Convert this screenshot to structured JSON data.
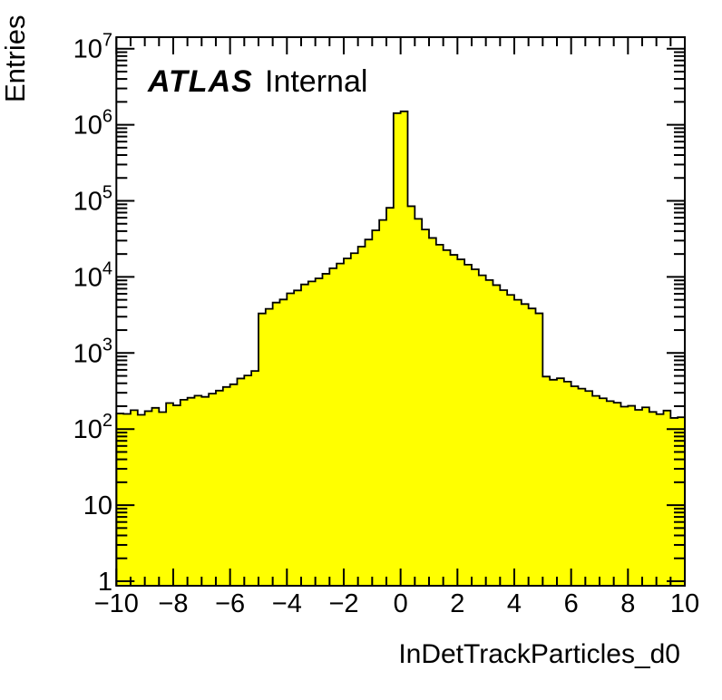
{
  "chart_data": {
    "type": "bar",
    "subtype": "histogram-step-filled",
    "title": "",
    "xlabel": "InDetTrackParticles_d0",
    "ylabel": "Entries",
    "annotations": {
      "experiment": "ATLAS",
      "status": "Internal"
    },
    "x_range": [
      -10,
      10
    ],
    "bin_width": 0.25,
    "n_bins": 80,
    "y_scale": "log",
    "y_range": [
      0.87,
      14200000
    ],
    "x_tick_major_values": [
      -10,
      -8,
      -6,
      -4,
      -2,
      0,
      2,
      4,
      6,
      8,
      10
    ],
    "x_tick_labels": [
      "−10",
      "−8",
      "−6",
      "−4",
      "−2",
      "0",
      "2",
      "4",
      "6",
      "8",
      "10"
    ],
    "x_tick_minor_step": 0.5,
    "y_tick_decades": [
      0,
      1,
      2,
      3,
      4,
      5,
      6,
      7
    ],
    "legend": null,
    "grid": false,
    "fill_color": "#ffff00",
    "line_color": "#000000",
    "background_color": "#ffffff",
    "values": [
      160,
      158,
      177,
      154,
      172,
      190,
      167,
      220,
      205,
      243,
      258,
      275,
      265,
      292,
      320,
      357,
      388,
      462,
      506,
      580,
      3310,
      3800,
      4600,
      5050,
      6080,
      6640,
      7970,
      8730,
      9570,
      11000,
      13000,
      15000,
      17500,
      20500,
      25000,
      31000,
      41000,
      56000,
      81000,
      1420000,
      1500000,
      85000,
      58000,
      42000,
      32500,
      26500,
      22500,
      19500,
      17000,
      14500,
      12600,
      10500,
      9100,
      7800,
      6700,
      5800,
      5000,
      4400,
      3850,
      3320,
      490,
      445,
      465,
      420,
      365,
      340,
      316,
      273,
      254,
      233,
      222,
      197,
      202,
      179,
      193,
      168,
      157,
      175,
      140,
      143
    ]
  }
}
